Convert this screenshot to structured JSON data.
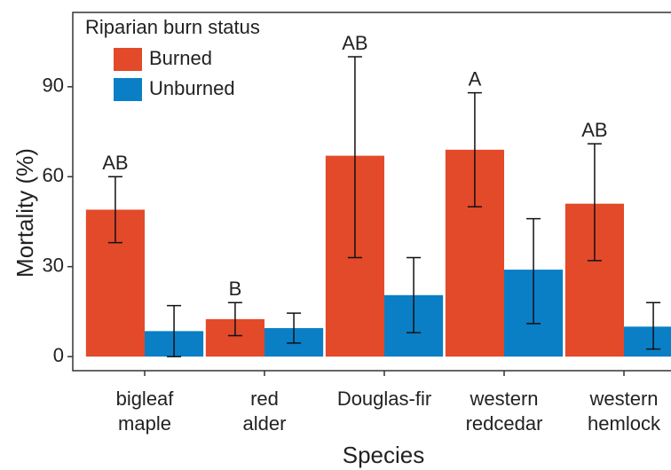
{
  "chart_data": {
    "type": "bar",
    "x_label": "Species",
    "y_label": "Mortality (%)",
    "legend_title": "Riparian burn status",
    "legend_position": "top-left",
    "categories": [
      "bigleaf\nmaple",
      "red\nalder",
      "Douglas-fir",
      "western\nredcedar",
      "western\nhemlock"
    ],
    "series": [
      {
        "name": "Burned",
        "color": "#e34a2a",
        "values": [
          49,
          12.5,
          67,
          69,
          51
        ],
        "lower": [
          38,
          7,
          33,
          50,
          32
        ],
        "upper": [
          60,
          18,
          100,
          88,
          71
        ]
      },
      {
        "name": "Unburned",
        "color": "#0a7fc6",
        "values": [
          8.5,
          9.5,
          20.5,
          29,
          10
        ],
        "lower": [
          0,
          4.5,
          8,
          11,
          2.5
        ],
        "upper": [
          17,
          14.5,
          33,
          46,
          18
        ]
      }
    ],
    "annotations": [
      "AB",
      "B",
      "AB",
      "A",
      "AB"
    ],
    "ylim": [
      -4.7,
      114.8
    ],
    "yticks": [
      0,
      30,
      60,
      90
    ],
    "grid": false
  }
}
